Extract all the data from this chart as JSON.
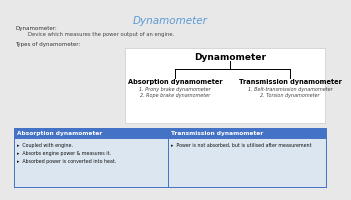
{
  "bg_color": "#e8e8e8",
  "title": "Dynamometer",
  "title_color": "#5b9bd5",
  "title_fontsize": 7.5,
  "def_label": "Dynamometer:",
  "def_text": "Device which measures the power output of an engine.",
  "types_label": "Types of dynamometer:",
  "tree_title": "Dynamometer",
  "tree_left_box": "Absorption dynamometer",
  "tree_right_box": "Transmission dynamometer",
  "tree_left_items": [
    "1. Prony brake dynamometer",
    "2. Rope brake dynamometer"
  ],
  "tree_right_items": [
    "1. Belt-transmission dynamometer",
    "2. Torsion dynamometer"
  ],
  "table_header_color": "#4472c4",
  "table_row_color": "#dce6f1",
  "table_body2_color": "#c5d5ea",
  "col1_header": "Absorption dynamometer",
  "col2_header": "Transmission dynamometer",
  "col1_bullets": [
    "Coupled with engine.",
    "Absorbs engine power & measures it.",
    "Absorbed power is converted into heat."
  ],
  "col2_bullets": [
    "Power is not absorbed, but is utilised after measurement"
  ]
}
